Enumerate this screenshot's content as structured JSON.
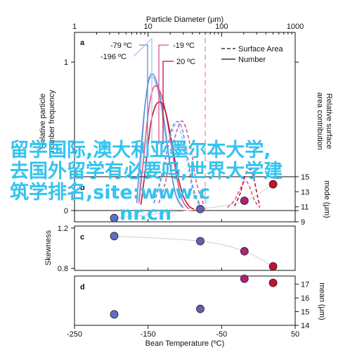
{
  "chart_data": [
    {
      "panel": "a",
      "type": "line",
      "x_axis_top": {
        "label": "Particle Diameter (μm)",
        "scale": "log",
        "ticks": [
          "1",
          "10",
          "100",
          "1000"
        ],
        "range": [
          1,
          1000
        ]
      },
      "ylabel_left": "Relative particle number frequency",
      "ylabel_right": "Relative surface area contribution",
      "yticks_left": [
        "0",
        "1"
      ],
      "ylim": [
        0,
        1.2
      ],
      "legend": {
        "placement": "top-right",
        "entries": [
          {
            "label": "Surface Area",
            "style": "dashed"
          },
          {
            "label": "Number",
            "style": "solid"
          }
        ]
      },
      "series_labels": [
        {
          "text": "-79 ºC",
          "color": "#5b8fd6"
        },
        {
          "text": "-196 ºC",
          "color": "#a9c6ee"
        },
        {
          "text": "-19 ºC",
          "color": "#d9558b"
        },
        {
          "text": "20 ºC",
          "color": "#c8102e"
        }
      ],
      "reference_line_x": 60,
      "series": [
        {
          "name": "-196 ºC",
          "color": "#a9c6ee",
          "style": "solid",
          "x": [
            7.5,
            8.2,
            9,
            10,
            11.5,
            13,
            15,
            17,
            20,
            24,
            29
          ],
          "y": [
            0.05,
            0.38,
            0.68,
            0.86,
            0.9,
            0.84,
            0.7,
            0.52,
            0.3,
            0.1,
            0.02
          ]
        },
        {
          "name": "-79 ºC",
          "color": "#5b8fd6",
          "style": "solid",
          "x": [
            7,
            7.8,
            8.7,
            9.6,
            10.5,
            11.6,
            13,
            15,
            17,
            20,
            24,
            30
          ],
          "y": [
            0.05,
            0.35,
            0.62,
            0.8,
            0.9,
            0.92,
            0.87,
            0.74,
            0.56,
            0.3,
            0.1,
            0.02
          ]
        },
        {
          "name": "-19 ºC",
          "color": "#d9558b",
          "style": "solid",
          "x": [
            7.5,
            8.5,
            9.5,
            10.5,
            11.5,
            12.5,
            14,
            16,
            18,
            21,
            25,
            30,
            36
          ],
          "y": [
            0.05,
            0.3,
            0.55,
            0.72,
            0.81,
            0.84,
            0.82,
            0.74,
            0.62,
            0.42,
            0.2,
            0.06,
            0.01
          ]
        },
        {
          "name": "20 ºC",
          "color": "#c8102e",
          "style": "solid",
          "x": [
            8,
            9,
            10,
            11,
            12.5,
            14,
            16,
            18,
            21,
            25,
            30,
            36,
            42
          ],
          "y": [
            0.04,
            0.24,
            0.44,
            0.6,
            0.7,
            0.73,
            0.71,
            0.63,
            0.46,
            0.25,
            0.1,
            0.03,
            0.01
          ]
        },
        {
          "name": "-196 ºC area",
          "color": "#a9c6ee",
          "style": "dashed",
          "x": [
            12,
            15,
            18,
            21,
            24,
            28,
            33,
            40,
            50
          ],
          "y": [
            0.05,
            0.2,
            0.38,
            0.52,
            0.58,
            0.52,
            0.36,
            0.14,
            0.03
          ]
        },
        {
          "name": "-79 ºC area",
          "color": "#5b8fd6",
          "style": "dashed",
          "x": [
            12,
            15,
            18,
            21,
            25,
            29,
            34,
            41,
            52
          ],
          "y": [
            0.05,
            0.22,
            0.4,
            0.55,
            0.6,
            0.55,
            0.38,
            0.15,
            0.03
          ]
        },
        {
          "name": "-19 ºC area",
          "color": "#d9558b",
          "style": "dashed",
          "x": [
            14,
            17,
            20,
            24,
            28,
            32,
            38,
            46,
            58
          ],
          "y": [
            0.05,
            0.18,
            0.36,
            0.52,
            0.6,
            0.57,
            0.42,
            0.18,
            0.03
          ]
        },
        {
          "name": "-19 ºC area 2",
          "color": "#d9558b",
          "style": "dashed",
          "x": [
            120,
            150,
            180,
            210,
            240,
            280,
            330
          ],
          "y": [
            0.02,
            0.07,
            0.15,
            0.2,
            0.16,
            0.07,
            0.02
          ]
        },
        {
          "name": "20 ºC area",
          "color": "#c8102e",
          "style": "dashed",
          "x": [
            150,
            180,
            210,
            240,
            270,
            300,
            330
          ],
          "y": [
            0.03,
            0.12,
            0.24,
            0.28,
            0.23,
            0.12,
            0.03
          ]
        }
      ]
    },
    {
      "panel": "b",
      "type": "scatter",
      "ylabel_right": "mode (μm)",
      "yticks_right": [
        "9",
        "11",
        "13",
        "15"
      ],
      "ylim": [
        9,
        15
      ],
      "points": [
        {
          "x": -196,
          "y": 9.5,
          "color": "#5b6fc8"
        },
        {
          "x": -79,
          "y": 10.7,
          "color": "#6a5db0"
        },
        {
          "x": -19,
          "y": 11.8,
          "color": "#b0207a"
        },
        {
          "x": 20,
          "y": 14.0,
          "color": "#c8102e"
        }
      ]
    },
    {
      "panel": "c",
      "type": "scatter",
      "ylabel_left": "Skewness",
      "yticks_left": [
        "0.8",
        "1.2"
      ],
      "ylim": [
        0.78,
        1.22
      ],
      "points": [
        {
          "x": -196,
          "y": 1.12,
          "color": "#5b6fc8"
        },
        {
          "x": -79,
          "y": 1.07,
          "color": "#6a5db0"
        },
        {
          "x": -19,
          "y": 0.97,
          "color": "#b0207a"
        },
        {
          "x": 20,
          "y": 0.82,
          "color": "#c8102e"
        }
      ]
    },
    {
      "panel": "d",
      "type": "scatter",
      "ylabel_right": "mean (μm)",
      "yticks_right": [
        "14",
        "15",
        "16",
        "17"
      ],
      "ylim": [
        14,
        17.6
      ],
      "xlabel": "Bean Temperature (ºC)",
      "xticks": [
        "-250",
        "-150",
        "-50",
        "50"
      ],
      "xlim": [
        -250,
        50
      ],
      "points": [
        {
          "x": -196,
          "y": 14.8,
          "color": "#5b6fc8"
        },
        {
          "x": -79,
          "y": 15.2,
          "color": "#6a5db0"
        },
        {
          "x": -19,
          "y": 17.4,
          "color": "#b0207a"
        },
        {
          "x": 20,
          "y": 17.1,
          "color": "#c8102e"
        }
      ]
    }
  ],
  "watermark": {
    "line1": "留学国际,澳大利亚墨尔本大学,",
    "line2": "去国外留学有必要吗,世界大学建",
    "line3": "筑学排名,site:www.c",
    "line4": "nr.cn"
  }
}
